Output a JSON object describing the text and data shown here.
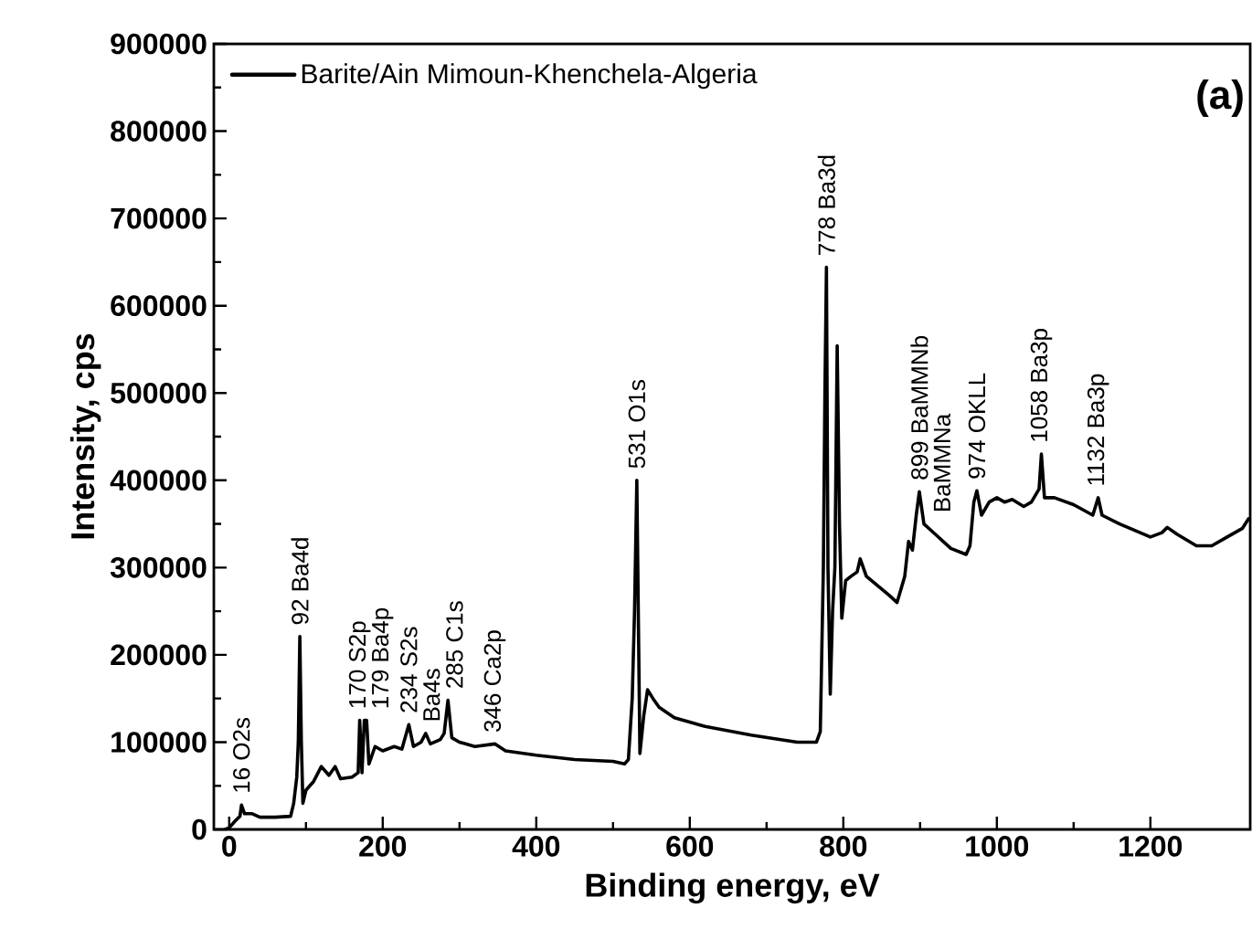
{
  "chart_data": {
    "type": "line",
    "xlabel": "Binding energy, eV",
    "ylabel": "Intensity, cps",
    "xlim": [
      -20,
      1330
    ],
    "ylim": [
      0,
      900000
    ],
    "xticks": [
      0,
      200,
      400,
      600,
      800,
      1000,
      1200
    ],
    "yticks": [
      0,
      100000,
      200000,
      300000,
      400000,
      500000,
      600000,
      700000,
      800000,
      900000
    ],
    "legend": "top left",
    "series": [
      {
        "name": "Barite/Ain Mimoun-Khenchela-Algeria",
        "color": "#000000",
        "x": [
          -5,
          0,
          8,
          14,
          16,
          20,
          30,
          40,
          60,
          80,
          84,
          88,
          90,
          92,
          94,
          96,
          100,
          110,
          120,
          130,
          138,
          145,
          160,
          168,
          170,
          173,
          176,
          179,
          182,
          190,
          200,
          215,
          225,
          234,
          240,
          250,
          256,
          262,
          275,
          280,
          285,
          290,
          300,
          320,
          346,
          360,
          400,
          450,
          500,
          515,
          520,
          525,
          528,
          531,
          535,
          540,
          545,
          552,
          560,
          580,
          620,
          680,
          740,
          765,
          770,
          774,
          776,
          778,
          780,
          783,
          786,
          789,
          792,
          795,
          798,
          803,
          810,
          818,
          822,
          830,
          860,
          870,
          880,
          885,
          890,
          895,
          899,
          905,
          920,
          940,
          960,
          965,
          970,
          974,
          980,
          990,
          1000,
          1010,
          1020,
          1035,
          1045,
          1055,
          1058,
          1062,
          1075,
          1100,
          1125,
          1132,
          1137,
          1160,
          1200,
          1215,
          1222,
          1235,
          1260,
          1280,
          1300,
          1320,
          1328
        ],
        "values": [
          0,
          2000,
          10000,
          15000,
          28000,
          18000,
          18000,
          14000,
          14000,
          15000,
          30000,
          60000,
          100000,
          221000,
          100000,
          30000,
          45000,
          55000,
          72000,
          62000,
          72000,
          58000,
          60000,
          65000,
          125000,
          65000,
          125000,
          125000,
          75000,
          95000,
          90000,
          95000,
          92000,
          120000,
          95000,
          100000,
          110000,
          98000,
          103000,
          110000,
          148000,
          105000,
          100000,
          95000,
          98000,
          90000,
          85000,
          80000,
          78000,
          75000,
          80000,
          150000,
          250000,
          400000,
          87000,
          130000,
          160000,
          150000,
          140000,
          128000,
          118000,
          108000,
          100000,
          100000,
          112000,
          300000,
          500000,
          644000,
          300000,
          155000,
          250000,
          300000,
          554000,
          350000,
          242000,
          285000,
          290000,
          295000,
          310000,
          290000,
          268000,
          260000,
          290000,
          330000,
          320000,
          360000,
          387000,
          350000,
          338000,
          322000,
          315000,
          325000,
          375000,
          388000,
          360000,
          375000,
          380000,
          375000,
          378000,
          370000,
          375000,
          390000,
          430000,
          380000,
          380000,
          372000,
          360000,
          380000,
          360000,
          350000,
          335000,
          340000,
          346000,
          338000,
          325000,
          325000,
          335000,
          345000,
          356000
        ]
      }
    ],
    "annotations": [
      {
        "text": "16 O2s",
        "x": 16,
        "y": 28000
      },
      {
        "text": "92 Ba4d",
        "x": 92,
        "y": 221000
      },
      {
        "text": "170 S2p",
        "x": 170,
        "y": 125000
      },
      {
        "text": "179 Ba4p",
        "x": 179,
        "y": 125000
      },
      {
        "text": "234 S2s",
        "x": 234,
        "y": 120000
      },
      {
        "text": "Ba4s",
        "x": 256,
        "y": 110000
      },
      {
        "text": "285 C1s",
        "x": 285,
        "y": 148000
      },
      {
        "text": "346 Ca2p",
        "x": 346,
        "y": 98000
      },
      {
        "text": "531 O1s",
        "x": 531,
        "y": 400000
      },
      {
        "text": "778 Ba3d",
        "x": 778,
        "y": 644000
      },
      {
        "text": "899 BaMMNb",
        "x": 899,
        "y": 387000
      },
      {
        "text": "BaMMNa",
        "x": 905,
        "y": 350000
      },
      {
        "text": "974 OKLL",
        "x": 974,
        "y": 388000
      },
      {
        "text": "1058 Ba3p",
        "x": 1058,
        "y": 430000
      },
      {
        "text": "1132 Ba3p",
        "x": 1132,
        "y": 380000
      },
      "(a)"
    ]
  }
}
